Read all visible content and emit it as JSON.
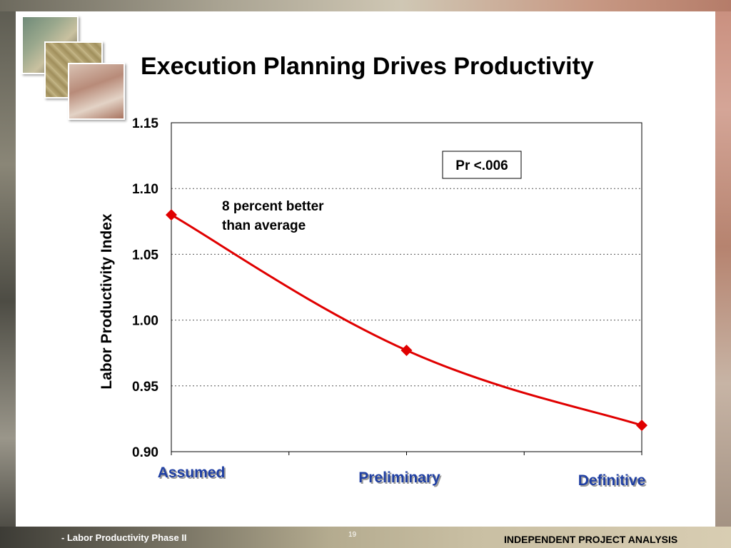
{
  "slide": {
    "title": "Execution Planning Drives Productivity",
    "footer_left": "- Labor Productivity Phase II",
    "page_number": "19",
    "footer_right": "INDEPENDENT PROJECT ANALYSIS"
  },
  "colors": {
    "series": "#e00000",
    "category_labels": "#1f3fa3",
    "grid": "#555555"
  },
  "chart_data": {
    "type": "line",
    "title": "",
    "xlabel": "",
    "ylabel": "Labor Productivity Index",
    "categories": [
      "Assumed",
      "Preliminary",
      "Definitive"
    ],
    "series": [
      {
        "values": [
          1.08,
          0.977,
          0.92
        ]
      }
    ],
    "ylim": [
      0.9,
      1.15
    ],
    "yticks": [
      "0.90",
      "0.95",
      "1.00",
      "1.05",
      "1.10",
      "1.15"
    ],
    "grid": true,
    "grid_style": "dotted",
    "marker": "diamond",
    "smooth": true,
    "annotations": [
      {
        "text_lines": [
          "8 percent better",
          "than average"
        ]
      },
      {
        "text": "Pr <.006",
        "boxed": true
      }
    ]
  }
}
